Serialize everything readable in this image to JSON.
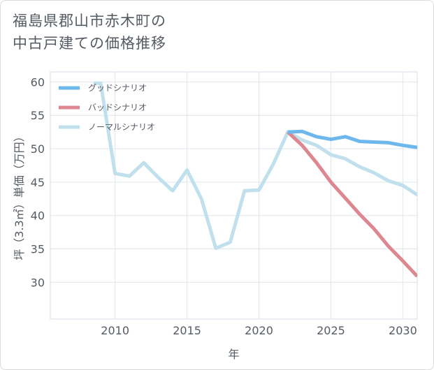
{
  "title_line1": "福島県郡山市赤木町の",
  "title_line2": "中古戸建ての価格推移",
  "chart_data": {
    "type": "line",
    "xlabel": "年",
    "ylabel": "坪（3.3㎡）単価（万円）",
    "xlim": [
      2005.5,
      2031
    ],
    "ylim": [
      24.5,
      61.5
    ],
    "xticks": [
      2010,
      2015,
      2020,
      2025,
      2030
    ],
    "yticks": [
      30,
      35,
      40,
      45,
      50,
      55,
      60
    ],
    "grid": true,
    "legend_position": "top-left",
    "series": [
      {
        "name": "グッドシナリオ",
        "color": "#6cb8ec",
        "points": [
          [
            2022,
            52.5
          ],
          [
            2023,
            52.6
          ],
          [
            2024,
            51.8
          ],
          [
            2025,
            51.4
          ],
          [
            2026,
            51.8
          ],
          [
            2027,
            51.1
          ],
          [
            2028,
            51.0
          ],
          [
            2029,
            50.9
          ],
          [
            2030,
            50.5
          ],
          [
            2031,
            50.2
          ]
        ]
      },
      {
        "name": "バッドシナリオ",
        "color": "#dd8890",
        "points": [
          [
            2022,
            52.5
          ],
          [
            2023,
            50.5
          ],
          [
            2024,
            47.9
          ],
          [
            2025,
            45.0
          ],
          [
            2026,
            42.6
          ],
          [
            2027,
            40.2
          ],
          [
            2028,
            38.0
          ],
          [
            2029,
            35.4
          ],
          [
            2030,
            33.2
          ],
          [
            2031,
            30.9
          ]
        ]
      },
      {
        "name": "ノーマルシナリオ",
        "color": "#bfe0ec",
        "points": [
          [
            2008.5,
            59.8
          ],
          [
            2009,
            59.8
          ],
          [
            2010,
            46.3
          ],
          [
            2011,
            45.9
          ],
          [
            2012,
            47.9
          ],
          [
            2013,
            45.7
          ],
          [
            2014,
            43.7
          ],
          [
            2015,
            46.8
          ],
          [
            2016,
            42.5
          ],
          [
            2017,
            35.1
          ],
          [
            2018,
            36.0
          ],
          [
            2019,
            43.7
          ],
          [
            2020,
            43.8
          ],
          [
            2021,
            47.7
          ],
          [
            2022,
            52.5
          ],
          [
            2023,
            51.3
          ],
          [
            2024,
            50.5
          ],
          [
            2025,
            49.1
          ],
          [
            2026,
            48.5
          ],
          [
            2027,
            47.3
          ],
          [
            2028,
            46.4
          ],
          [
            2029,
            45.2
          ],
          [
            2030,
            44.5
          ],
          [
            2031,
            43.1
          ]
        ]
      }
    ]
  }
}
